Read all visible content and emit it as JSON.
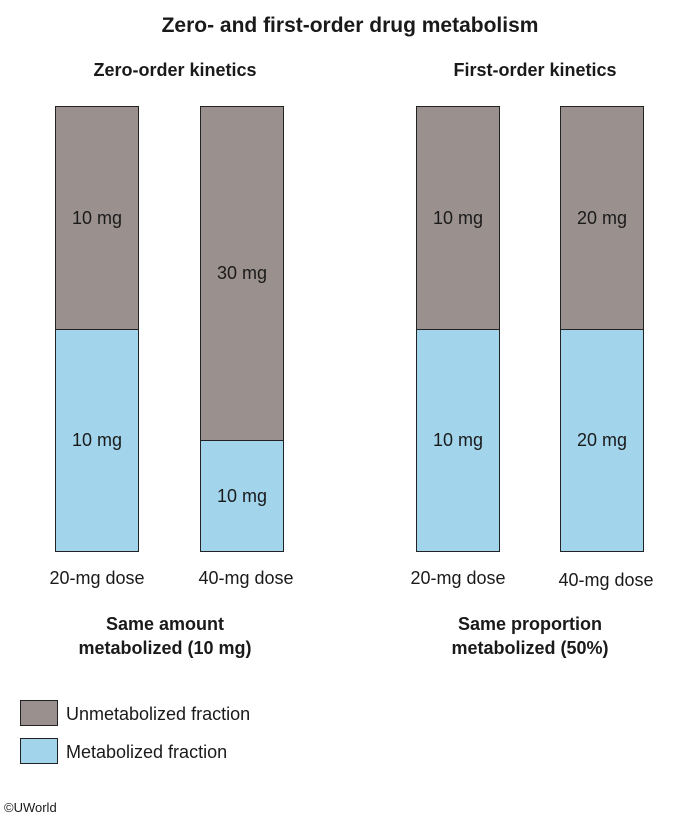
{
  "title": "Zero- and first-order drug metabolism",
  "groups": [
    {
      "title": "Zero-order kinetics",
      "note_line1": "Same amount",
      "note_line2": "metabolized (10 mg)",
      "bars": [
        {
          "dose_label": "20-mg dose",
          "unmetabolized_mg": 10,
          "metabolized_mg": 10,
          "unmetabolized_label": "10 mg",
          "metabolized_label": "10 mg"
        },
        {
          "dose_label": "40-mg dose",
          "unmetabolized_mg": 30,
          "metabolized_mg": 10,
          "unmetabolized_label": "30 mg",
          "metabolized_label": "10 mg"
        }
      ]
    },
    {
      "title": "First-order kinetics",
      "note_line1": "Same proportion",
      "note_line2": "metabolized (50%)",
      "bars": [
        {
          "dose_label": "20-mg dose",
          "unmetabolized_mg": 10,
          "metabolized_mg": 10,
          "unmetabolized_label": "10 mg",
          "metabolized_label": "10 mg"
        },
        {
          "dose_label": "40-mg dose",
          "unmetabolized_mg": 20,
          "metabolized_mg": 20,
          "unmetabolized_label": "20 mg",
          "metabolized_label": "20 mg"
        }
      ]
    }
  ],
  "legend": [
    {
      "label": "Unmetabolized fraction",
      "color": "#9a918f"
    },
    {
      "label": "Metabolized fraction",
      "color": "#a2d5ec"
    }
  ],
  "credit": "©UWorld"
}
